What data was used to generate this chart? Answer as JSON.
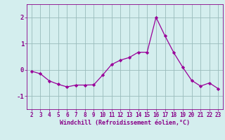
{
  "x": [
    2,
    3,
    4,
    5,
    6,
    7,
    8,
    9,
    10,
    11,
    12,
    13,
    14,
    15,
    16,
    17,
    18,
    19,
    20,
    21,
    22,
    23
  ],
  "y": [
    -0.05,
    -0.15,
    -0.42,
    -0.55,
    -0.65,
    -0.58,
    -0.58,
    -0.57,
    -0.2,
    0.2,
    0.37,
    0.47,
    0.67,
    0.67,
    2.0,
    1.3,
    0.65,
    0.1,
    -0.4,
    -0.62,
    -0.5,
    -0.72
  ],
  "line_color": "#990099",
  "marker": "D",
  "marker_size": 2.2,
  "bg_color": "#d4eeee",
  "grid_color": "#99bbbb",
  "xlabel": "Windchill (Refroidissement éolien,°C)",
  "xlabel_color": "#880088",
  "tick_color": "#880088",
  "label_color": "#880088",
  "ylim": [
    -1.5,
    2.5
  ],
  "yticks": [
    -1,
    0,
    1,
    2
  ],
  "ytick_labels": [
    "-1",
    "0",
    "1",
    "2"
  ],
  "xlim": [
    1.5,
    23.5
  ],
  "xticks": [
    2,
    3,
    4,
    5,
    6,
    7,
    8,
    9,
    10,
    11,
    12,
    13,
    14,
    15,
    16,
    17,
    18,
    19,
    20,
    21,
    22,
    23
  ],
  "tick_fontsize": 5.5,
  "ytick_fontsize": 6.5,
  "xlabel_fontsize": 6.0,
  "linewidth": 0.9
}
